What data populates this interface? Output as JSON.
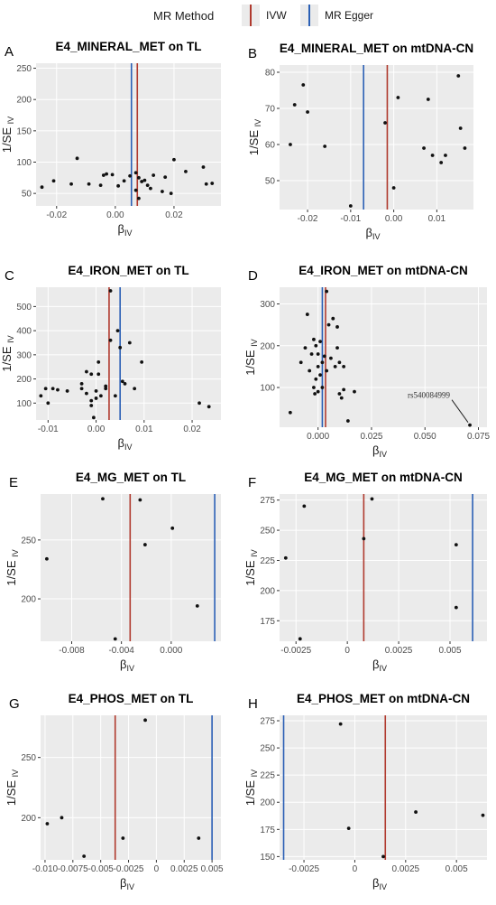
{
  "legend": {
    "title": "MR Method",
    "items": [
      {
        "label": "IVW",
        "color": "#b03a2e"
      },
      {
        "label": "MR Egger",
        "color": "#2a5fb5"
      }
    ]
  },
  "chart_data": [
    {
      "panel": "A",
      "type": "scatter",
      "title": "E4_MINERAL_MET on TL",
      "xlabel": "β",
      "xlabel_sub": "IV",
      "ylabel": "1/SE",
      "ylabel_sub": "IV",
      "xlim": [
        -0.027,
        0.036
      ],
      "ylim": [
        30,
        258
      ],
      "xticks": [
        -0.02,
        0.0,
        0.02
      ],
      "xtick_labels": [
        "-0.02",
        "0.00",
        "0.02"
      ],
      "yticks": [
        50,
        100,
        150,
        200,
        250
      ],
      "ytick_labels": [
        "50",
        "100",
        "150",
        "200",
        "250"
      ],
      "ivw": 0.0075,
      "egger": 0.0055,
      "points": [
        [
          -0.025,
          60
        ],
        [
          -0.021,
          70
        ],
        [
          -0.015,
          65
        ],
        [
          -0.013,
          106
        ],
        [
          -0.009,
          65
        ],
        [
          -0.005,
          63
        ],
        [
          -0.004,
          79
        ],
        [
          -0.003,
          81
        ],
        [
          -0.001,
          80
        ],
        [
          0.001,
          62
        ],
        [
          0.003,
          70
        ],
        [
          0.005,
          78
        ],
        [
          0.007,
          55
        ],
        [
          0.007,
          83
        ],
        [
          0.008,
          75
        ],
        [
          0.008,
          42
        ],
        [
          0.009,
          69
        ],
        [
          0.01,
          71
        ],
        [
          0.011,
          63
        ],
        [
          0.012,
          58
        ],
        [
          0.013,
          79
        ],
        [
          0.016,
          53
        ],
        [
          0.017,
          76
        ],
        [
          0.019,
          50
        ],
        [
          0.02,
          104
        ],
        [
          0.024,
          85
        ],
        [
          0.03,
          92
        ],
        [
          0.031,
          65
        ],
        [
          0.033,
          66
        ]
      ],
      "annotations": []
    },
    {
      "panel": "B",
      "type": "scatter",
      "title": "E4_MINERAL_MET on mtDNA-CN",
      "xlabel": "β",
      "xlabel_sub": "IV",
      "ylabel": "1/SE",
      "ylabel_sub": "IV",
      "xlim": [
        -0.0265,
        0.0185
      ],
      "ylim": [
        42,
        82
      ],
      "xticks": [
        -0.02,
        -0.01,
        0.0,
        0.01
      ],
      "xtick_labels": [
        "-0.02",
        "-0.01",
        "0.00",
        "0.01"
      ],
      "yticks": [
        50,
        60,
        70,
        80
      ],
      "ytick_labels": [
        "50",
        "60",
        "70",
        "80"
      ],
      "ivw": -0.0015,
      "egger": -0.007,
      "points": [
        [
          -0.024,
          60
        ],
        [
          -0.023,
          71
        ],
        [
          -0.021,
          76.5
        ],
        [
          -0.02,
          69
        ],
        [
          -0.016,
          59.5
        ],
        [
          -0.01,
          43
        ],
        [
          -0.002,
          66
        ],
        [
          0.0,
          48
        ],
        [
          0.001,
          73
        ],
        [
          0.007,
          59
        ],
        [
          0.008,
          72.5
        ],
        [
          0.009,
          57
        ],
        [
          0.011,
          55
        ],
        [
          0.012,
          57
        ],
        [
          0.015,
          79
        ],
        [
          0.0155,
          64.5
        ],
        [
          0.0165,
          59
        ]
      ],
      "annotations": []
    },
    {
      "panel": "C",
      "type": "scatter",
      "title": "E4_IRON_MET on TL",
      "xlabel": "β",
      "xlabel_sub": "IV",
      "ylabel": "1/SE",
      "ylabel_sub": "IV",
      "xlim": [
        -0.0125,
        0.026
      ],
      "ylim": [
        30,
        580
      ],
      "xticks": [
        -0.01,
        0.0,
        0.01,
        0.02
      ],
      "xtick_labels": [
        "-0.01",
        "0.00",
        "0.01",
        "0.02"
      ],
      "yticks": [
        100,
        200,
        300,
        400,
        500
      ],
      "ytick_labels": [
        "100",
        "200",
        "300",
        "400",
        "500"
      ],
      "ivw": 0.0027,
      "egger": 0.005,
      "points": [
        [
          -0.0115,
          130
        ],
        [
          -0.0105,
          160
        ],
        [
          -0.01,
          100
        ],
        [
          -0.009,
          160
        ],
        [
          -0.008,
          155
        ],
        [
          -0.006,
          150
        ],
        [
          -0.003,
          180
        ],
        [
          -0.003,
          160
        ],
        [
          -0.002,
          230
        ],
        [
          -0.002,
          140
        ],
        [
          -0.001,
          220
        ],
        [
          -0.001,
          110
        ],
        [
          -0.001,
          90
        ],
        [
          -0.0005,
          40
        ],
        [
          0.0,
          150
        ],
        [
          0.0,
          120
        ],
        [
          0.0005,
          270
        ],
        [
          0.0005,
          220
        ],
        [
          0.001,
          130
        ],
        [
          0.002,
          160
        ],
        [
          0.002,
          170
        ],
        [
          0.003,
          565
        ],
        [
          0.003,
          360
        ],
        [
          0.004,
          130
        ],
        [
          0.0045,
          400
        ],
        [
          0.005,
          330
        ],
        [
          0.0055,
          190
        ],
        [
          0.006,
          180
        ],
        [
          0.007,
          350
        ],
        [
          0.008,
          160
        ],
        [
          0.0095,
          270
        ],
        [
          0.0215,
          100
        ],
        [
          0.0235,
          85
        ]
      ],
      "annotations": []
    },
    {
      "panel": "D",
      "type": "scatter",
      "title": "E4_IRON_MET on mtDNA-CN",
      "xlabel": "β",
      "xlabel_sub": "IV",
      "ylabel": "1/SE",
      "ylabel_sub": "IV",
      "xlim": [
        -0.018,
        0.079
      ],
      "ylim": [
        5,
        340
      ],
      "xticks": [
        0.0,
        0.025,
        0.05,
        0.075
      ],
      "xtick_labels": [
        "0.000",
        "0.025",
        "0.050",
        "0.075"
      ],
      "yticks": [
        100,
        200,
        300
      ],
      "ytick_labels": [
        "100",
        "200",
        "300"
      ],
      "ivw": 0.0035,
      "egger": 0.002,
      "points": [
        [
          -0.013,
          40
        ],
        [
          -0.008,
          160
        ],
        [
          -0.006,
          195
        ],
        [
          -0.005,
          275
        ],
        [
          -0.004,
          140
        ],
        [
          -0.003,
          180
        ],
        [
          -0.002,
          215
        ],
        [
          -0.002,
          100
        ],
        [
          -0.0015,
          85
        ],
        [
          -0.001,
          200
        ],
        [
          -0.001,
          120
        ],
        [
          0.0,
          180
        ],
        [
          0.0,
          150
        ],
        [
          0.0,
          90
        ],
        [
          0.001,
          210
        ],
        [
          0.001,
          130
        ],
        [
          0.002,
          160
        ],
        [
          0.002,
          100
        ],
        [
          0.003,
          175
        ],
        [
          0.004,
          330
        ],
        [
          0.004,
          140
        ],
        [
          0.005,
          250
        ],
        [
          0.006,
          170
        ],
        [
          0.007,
          265
        ],
        [
          0.008,
          150
        ],
        [
          0.009,
          245
        ],
        [
          0.009,
          195
        ],
        [
          0.01,
          85
        ],
        [
          0.01,
          160
        ],
        [
          0.011,
          75
        ],
        [
          0.012,
          150
        ],
        [
          0.012,
          95
        ],
        [
          0.014,
          20
        ],
        [
          0.017,
          90
        ],
        [
          0.071,
          10
        ]
      ],
      "annotations": [
        {
          "text": "rs540084999",
          "x": 0.071,
          "y": 10
        }
      ]
    },
    {
      "panel": "E",
      "type": "scatter",
      "title": "E4_MG_MET on TL",
      "xlabel": "β",
      "xlabel_sub": "IV",
      "ylabel": "1/SE",
      "ylabel_sub": "IV",
      "xlim": [
        -0.0105,
        0.004
      ],
      "ylim": [
        164,
        289
      ],
      "xticks": [
        -0.008,
        -0.004,
        0.0
      ],
      "xtick_labels": [
        "-0.008",
        "-0.004",
        "0.000"
      ],
      "yticks": [
        200,
        250
      ],
      "ytick_labels": [
        "200",
        "250"
      ],
      "ivw": -0.0033,
      "egger": 0.0035,
      "points": [
        [
          -0.01,
          234
        ],
        [
          -0.0055,
          285
        ],
        [
          -0.0045,
          166
        ],
        [
          -0.0025,
          284
        ],
        [
          -0.0021,
          246
        ],
        [
          0.0001,
          260
        ],
        [
          0.0021,
          194
        ]
      ],
      "annotations": []
    },
    {
      "panel": "F",
      "type": "scatter",
      "title": "E4_MG_MET on mtDNA-CN",
      "xlabel": "β",
      "xlabel_sub": "IV",
      "ylabel": "1/SE",
      "ylabel_sub": "IV",
      "xlim": [
        -0.0033,
        0.0068
      ],
      "ylim": [
        158,
        280
      ],
      "xticks": [
        -0.0025,
        0.0,
        0.0025,
        0.005
      ],
      "xtick_labels": [
        "-0.0025",
        "0",
        "0.0025",
        "0.005"
      ],
      "yticks": [
        175,
        200,
        225,
        250,
        275
      ],
      "ytick_labels": [
        "175",
        "200",
        "225",
        "250",
        "275"
      ],
      "ivw": 0.0008,
      "egger": 0.0061,
      "points": [
        [
          -0.003,
          227
        ],
        [
          -0.0023,
          160
        ],
        [
          -0.0021,
          270
        ],
        [
          0.0008,
          243
        ],
        [
          0.0012,
          276
        ],
        [
          0.0053,
          238
        ],
        [
          0.0053,
          186
        ]
      ],
      "annotations": []
    },
    {
      "panel": "G",
      "type": "scatter",
      "title": "E4_PHOS_MET on TL",
      "xlabel": "β",
      "xlabel_sub": "IV",
      "ylabel": "1/SE",
      "ylabel_sub": "IV",
      "xlim": [
        -0.0104,
        0.0058
      ],
      "ylim": [
        165,
        285
      ],
      "xticks": [
        -0.01,
        -0.0075,
        -0.005,
        -0.0025,
        0.0,
        0.0025,
        0.005
      ],
      "xtick_labels": [
        "-0.010",
        "-0.0075",
        "-0.005",
        "-0.0025",
        "0",
        "0.0025",
        "0.005"
      ],
      "yticks": [
        200,
        250
      ],
      "ytick_labels": [
        "200",
        "250"
      ],
      "ivw": -0.0037,
      "egger": 0.005,
      "points": [
        [
          -0.0098,
          195
        ],
        [
          -0.0085,
          200
        ],
        [
          -0.0065,
          168
        ],
        [
          -0.003,
          183
        ],
        [
          -0.001,
          281
        ],
        [
          0.0038,
          183
        ]
      ],
      "annotations": []
    },
    {
      "panel": "H",
      "type": "scatter",
      "title": "E4_PHOS_MET on mtDNA-CN",
      "xlabel": "β",
      "xlabel_sub": "IV",
      "ylabel": "1/SE",
      "ylabel_sub": "IV",
      "xlim": [
        -0.0037,
        0.0065
      ],
      "ylim": [
        147,
        280
      ],
      "xticks": [
        -0.0025,
        0.0,
        0.0025,
        0.005
      ],
      "xtick_labels": [
        "-0.0025",
        "0",
        "0.0025",
        "0.005"
      ],
      "yticks": [
        150,
        175,
        200,
        225,
        250,
        275
      ],
      "ytick_labels": [
        "150",
        "175",
        "200",
        "225",
        "250",
        "275"
      ],
      "ivw": 0.0015,
      "egger": -0.0035,
      "points": [
        [
          -0.0007,
          272
        ],
        [
          -0.0003,
          176
        ],
        [
          0.0014,
          150
        ],
        [
          0.003,
          191
        ],
        [
          0.0063,
          188
        ]
      ],
      "annotations": []
    }
  ]
}
